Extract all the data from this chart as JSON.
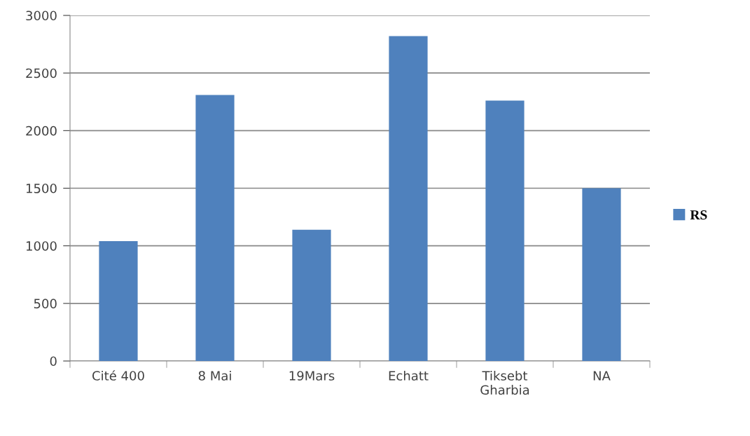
{
  "chart_data": {
    "type": "bar",
    "categories": [
      "Cité 400",
      "8 Mai",
      "19Mars",
      "Echatt",
      "Tiksebt\nGharbia",
      "NA"
    ],
    "series": [
      {
        "name": "RS",
        "color": "#4f81bd",
        "values": [
          1040,
          2310,
          1140,
          2820,
          2260,
          1500
        ]
      }
    ],
    "ylim": [
      0,
      3000
    ],
    "yticks": [
      0,
      500,
      1000,
      1500,
      2000,
      2500,
      3000
    ],
    "grid": "y",
    "legend": "right"
  }
}
